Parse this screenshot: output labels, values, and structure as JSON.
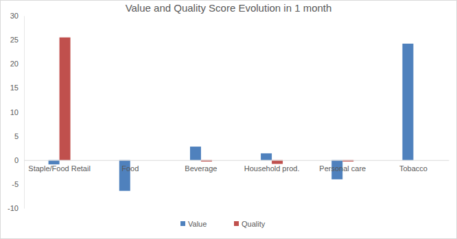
{
  "chart_data": {
    "type": "bar",
    "title": "Value and Quality Score Evolution in 1 month",
    "categories": [
      "Staple/Food Retail",
      "Food",
      "Beverage",
      "Household prod.",
      "Personal care",
      "Tobacco"
    ],
    "series": [
      {
        "name": "Value",
        "color": "#4f81bd",
        "values": [
          -0.9,
          -6.4,
          2.8,
          1.4,
          -4.0,
          24.2
        ]
      },
      {
        "name": "Quality",
        "color": "#c0504d",
        "values": [
          25.5,
          0,
          -0.3,
          -0.8,
          -0.3,
          0
        ]
      }
    ],
    "ylim": [
      -10,
      30
    ],
    "yticks": [
      -10,
      -5,
      0,
      5,
      10,
      15,
      20,
      25,
      30
    ],
    "grid": false,
    "legend": "bottom"
  }
}
